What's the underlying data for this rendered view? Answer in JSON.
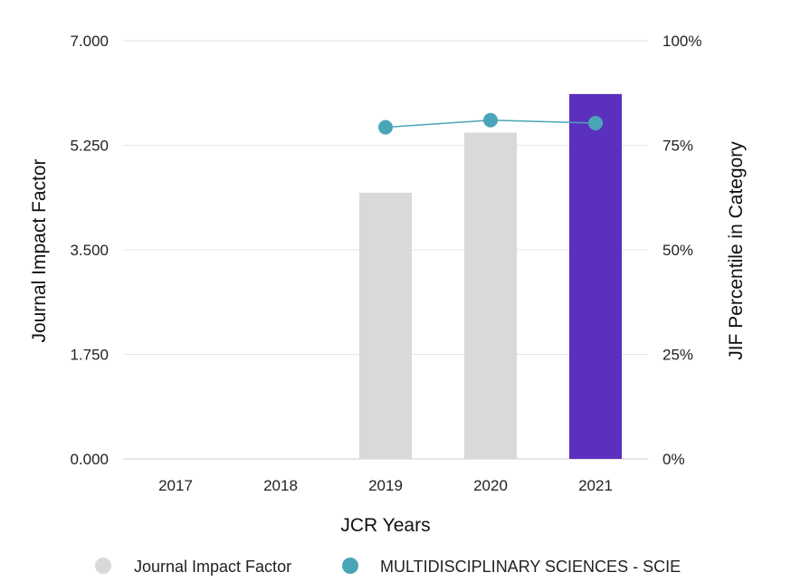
{
  "chart_data": {
    "type": "bar",
    "title": "",
    "xlabel": "JCR Years",
    "ylabel": "Journal Impact Factor",
    "y2label": "JIF Percentile in Category",
    "categories": [
      "2017",
      "2018",
      "2019",
      "2020",
      "2021"
    ],
    "ylim": [
      0,
      7
    ],
    "y2lim": [
      0,
      100
    ],
    "yticks": [
      "0.000",
      "1.750",
      "3.500",
      "5.250",
      "7.000"
    ],
    "y2ticks": [
      "0%",
      "25%",
      "50%",
      "75%",
      "100%"
    ],
    "series": [
      {
        "name": "Journal Impact Factor",
        "type": "bar",
        "axis": "left",
        "values": [
          null,
          null,
          4.456,
          5.463,
          6.108
        ],
        "colors": [
          "#d9d9d9",
          "#d9d9d9",
          "#d9d9d9",
          "#d9d9d9",
          "#5c30be"
        ]
      },
      {
        "name": "MULTIDISCIPLINARY SCIENCES - SCIE",
        "type": "line",
        "axis": "right",
        "values": [
          null,
          null,
          79.3,
          81.0,
          80.3
        ],
        "color": "#4aa5b8"
      }
    ],
    "legend": {
      "position": "bottom",
      "items": [
        {
          "label": "Journal Impact Factor",
          "color": "#d9d9d9"
        },
        {
          "label": "MULTIDISCIPLINARY SCIENCES - SCIE",
          "color": "#4aa5b8"
        }
      ]
    },
    "grid": true
  }
}
